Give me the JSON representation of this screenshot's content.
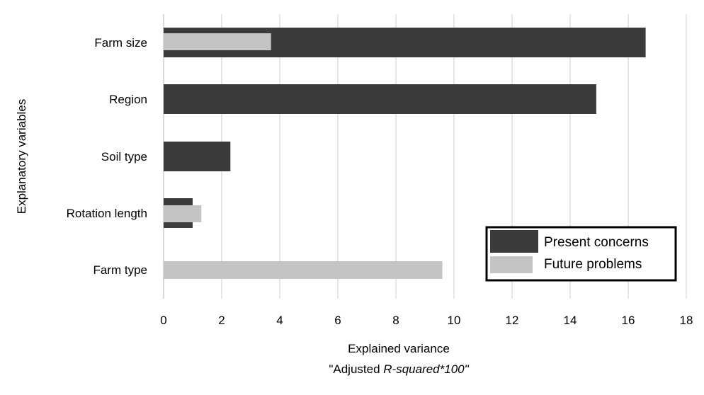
{
  "chart_data": {
    "type": "bar",
    "orientation": "horizontal",
    "categories": [
      "Farm size",
      "Region",
      "Soil type",
      "Rotation length",
      "Farm type"
    ],
    "series": [
      {
        "name": "Present concerns",
        "color": "#3b3b3b",
        "values": [
          16.6,
          14.9,
          2.3,
          1.0,
          null
        ]
      },
      {
        "name": "Future problems",
        "color": "#c4c4c4",
        "values": [
          3.7,
          null,
          null,
          1.3,
          9.6
        ]
      }
    ],
    "x_ticks": [
      "0",
      "2",
      "4",
      "6",
      "8",
      "10",
      "12",
      "14",
      "16",
      "18"
    ],
    "xlim": [
      0,
      18
    ],
    "xlabel_line1": "Explained variance",
    "xlabel_line2_prefix": "\"Adjusted ",
    "xlabel_line2_italic": "R-squared*100\"",
    "ylabel": "Explanatory variables",
    "grid": "vertical",
    "legend_position": "bottom-right"
  }
}
